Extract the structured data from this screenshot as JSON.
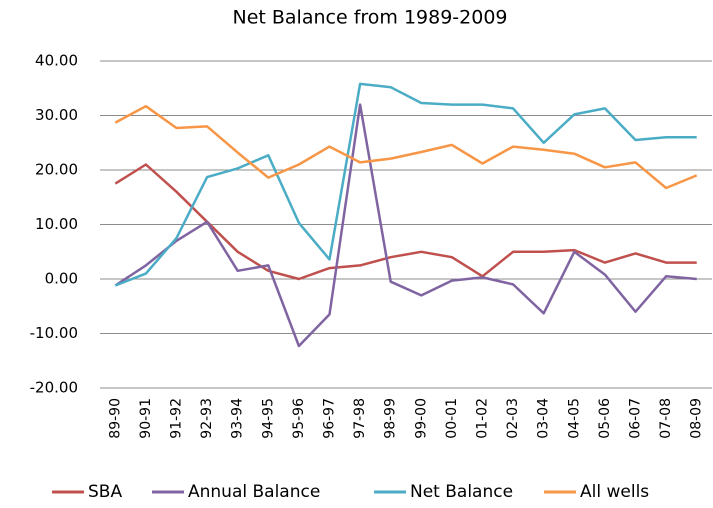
{
  "chart_data": {
    "type": "line",
    "title": "Net Balance from 1989-2009",
    "categories": [
      "89-90",
      "90-91",
      "91-92",
      "92-93",
      "93-94",
      "94-95",
      "95-96",
      "96-97",
      "97-98",
      "98-99",
      "99-00",
      "00-01",
      "01-02",
      "02-03",
      "03-04",
      "04-05",
      "05-06",
      "06-07",
      "07-08",
      "08-09"
    ],
    "series": [
      {
        "name": "SBA",
        "color": "#c0504d",
        "values": [
          17.5,
          21,
          16,
          10.5,
          5,
          1.5,
          0,
          2,
          2.5,
          4,
          5,
          4,
          0.5,
          5,
          5,
          5.3,
          3,
          4.7,
          3,
          3
        ]
      },
      {
        "name": "Annual Balance",
        "color": "#8064a2",
        "values": [
          -1.2,
          2.5,
          7,
          10.5,
          1.5,
          2.5,
          -12.3,
          -6.5,
          32,
          -0.5,
          -3,
          -0.3,
          0.3,
          -1,
          -6.3,
          5,
          0.8,
          -6,
          0.5,
          0
        ]
      },
      {
        "name": "Net Balance",
        "color": "#4bacc6",
        "values": [
          -1.2,
          1,
          7.5,
          18.7,
          20.3,
          22.7,
          10.3,
          3.6,
          35.8,
          35.2,
          32.3,
          32,
          32,
          31.3,
          25,
          30.2,
          31.3,
          25.5,
          26,
          26
        ]
      },
      {
        "name": "All wells",
        "color": "#f79646",
        "values": [
          28.7,
          31.7,
          27.7,
          28,
          23.2,
          18.6,
          21,
          24.3,
          21.4,
          22.1,
          23.3,
          24.6,
          21.2,
          24.3,
          23.7,
          23,
          20.5,
          21.4,
          16.7,
          19
        ]
      }
    ],
    "ylim": [
      -20,
      40
    ],
    "yticks": [
      {
        "value": -20,
        "label": "-20.00"
      },
      {
        "value": -10,
        "label": "-10.00"
      },
      {
        "value": 0,
        "label": "0.00"
      },
      {
        "value": 10,
        "label": "10.00"
      },
      {
        "value": 20,
        "label": "20.00"
      },
      {
        "value": 30,
        "label": "30.00"
      },
      {
        "value": 40,
        "label": "40.00"
      }
    ],
    "grid": true,
    "legend": "bottom"
  }
}
